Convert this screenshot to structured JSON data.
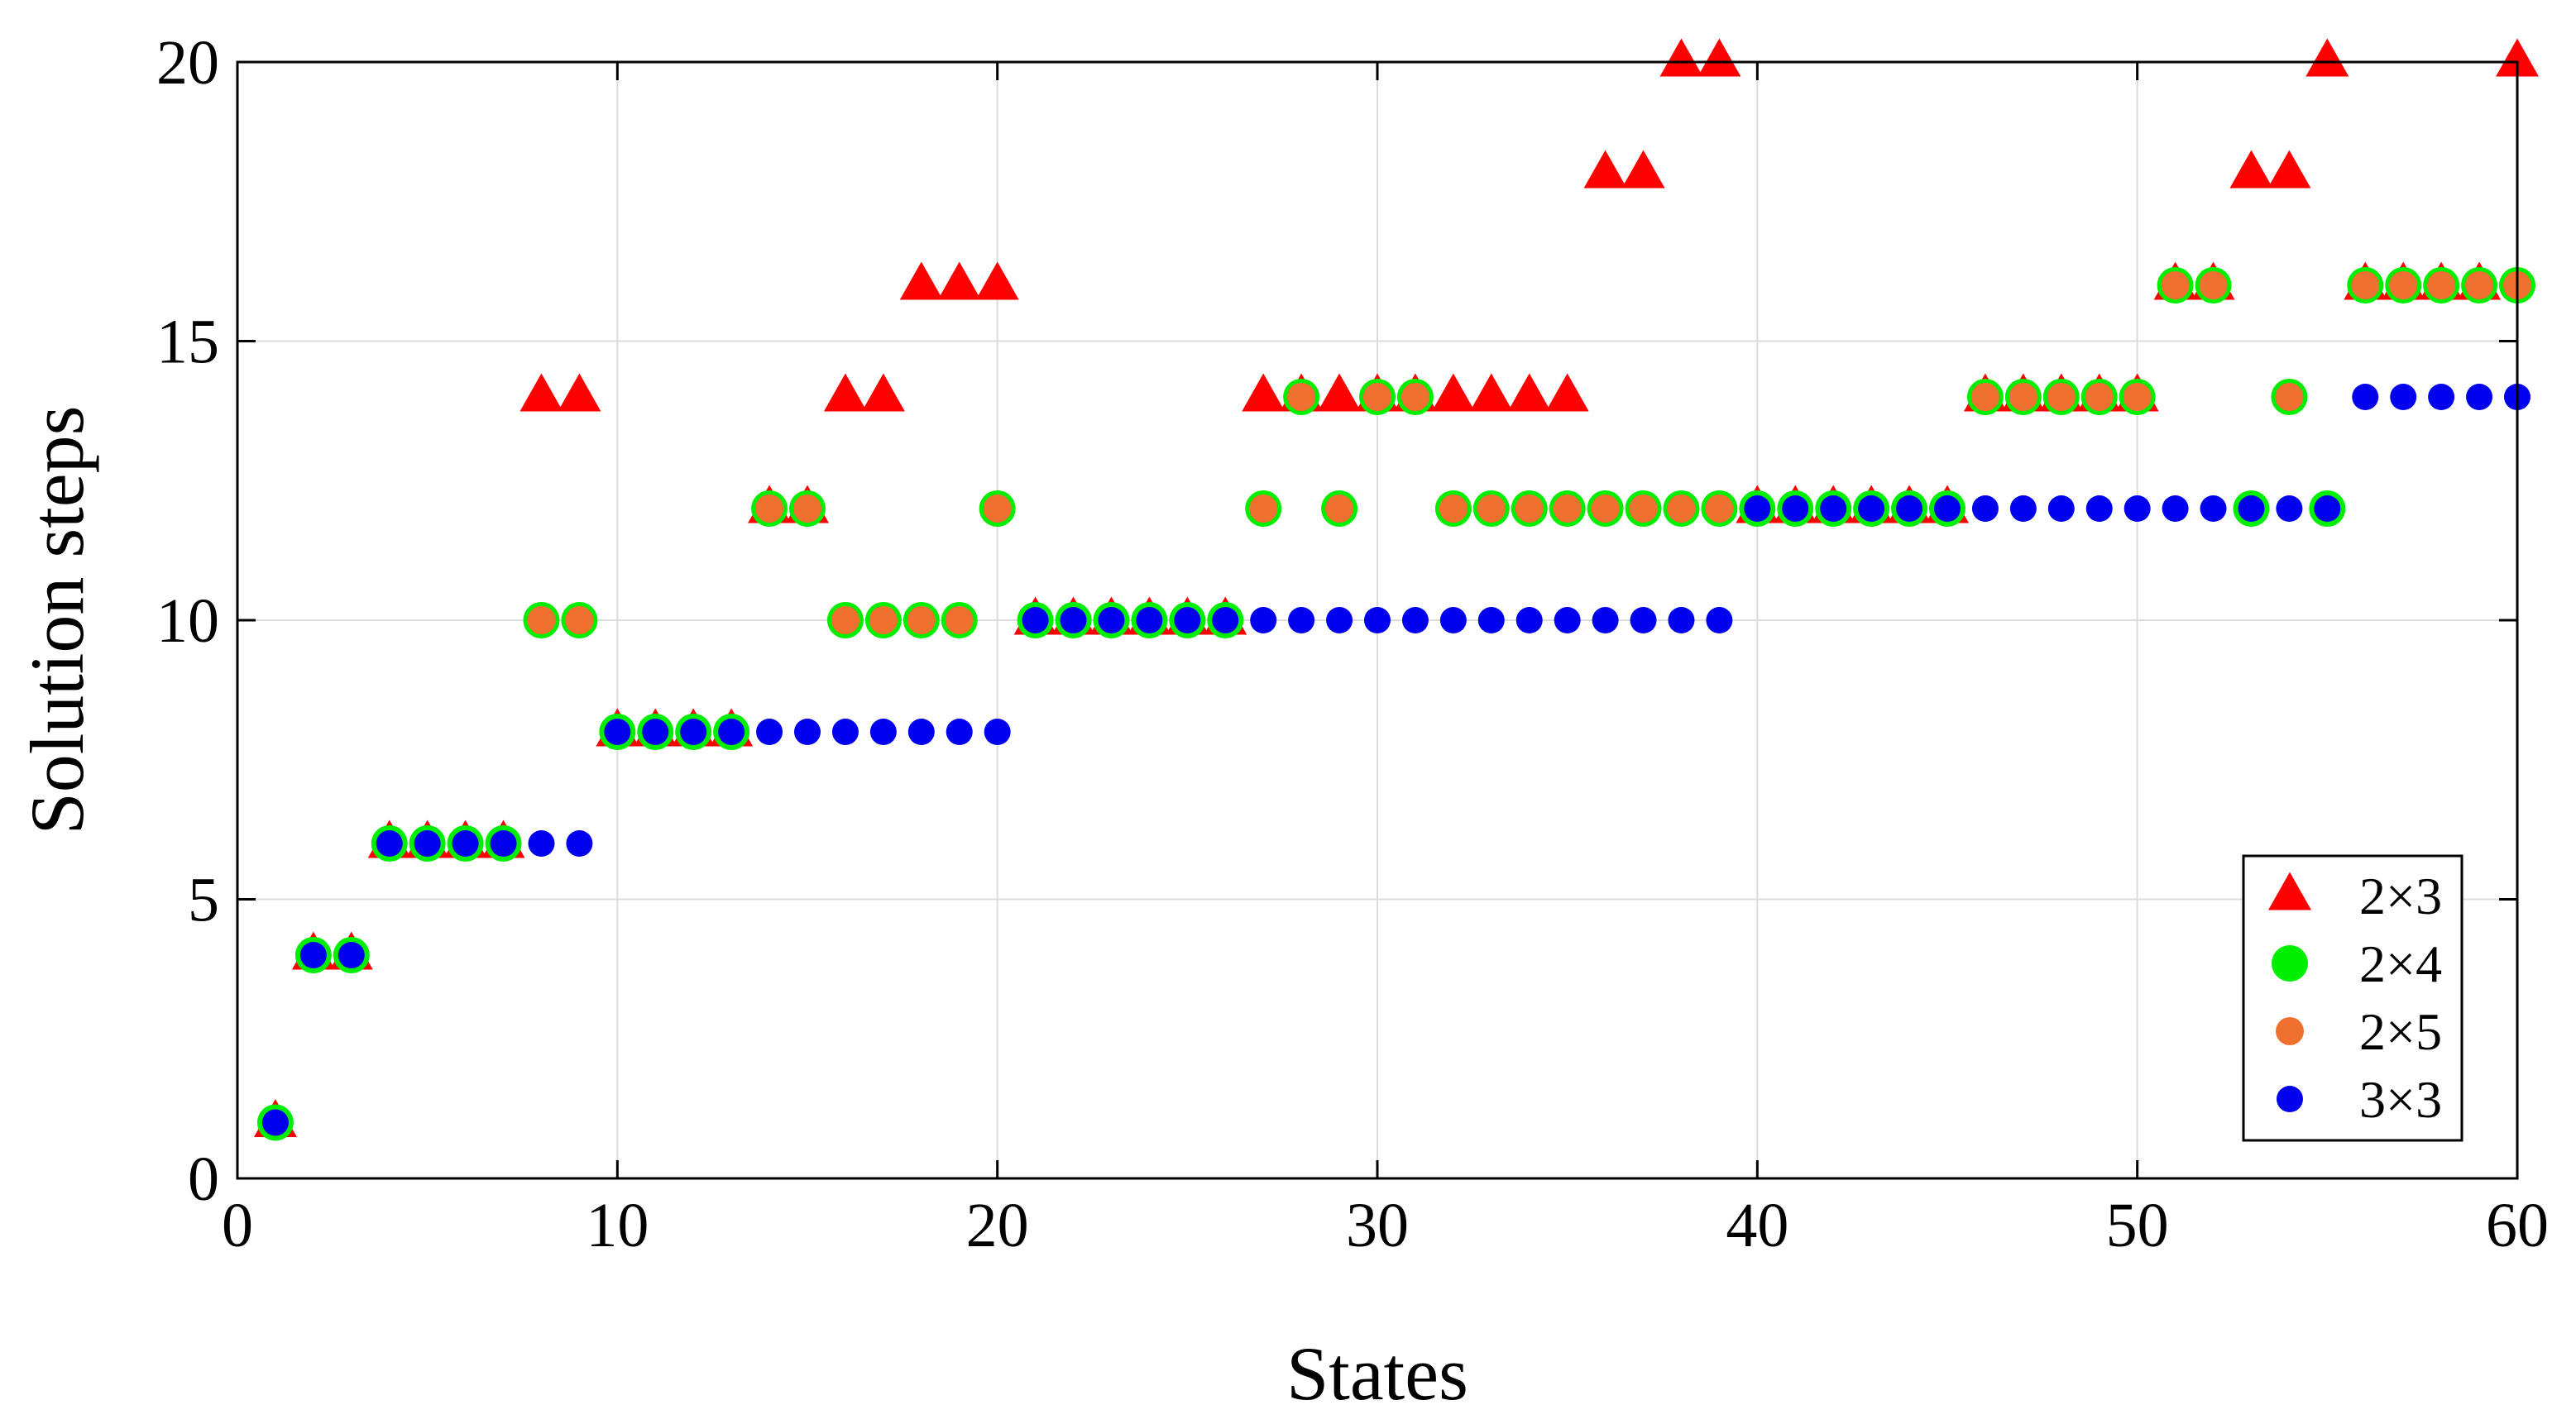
{
  "chart_data": {
    "type": "scatter",
    "title": "",
    "xlabel": "States",
    "ylabel": "Solution steps",
    "xlim": [
      0,
      60
    ],
    "ylim": [
      0,
      20
    ],
    "xticks": [
      0,
      10,
      20,
      30,
      40,
      50,
      60
    ],
    "yticks": [
      0,
      5,
      10,
      15,
      20
    ],
    "grid": true,
    "legend_position": "bottom-right",
    "series": [
      {
        "name": "2×3",
        "marker": "triangle",
        "color": "#ff0000",
        "x": [
          1,
          2,
          3,
          4,
          5,
          6,
          7,
          8,
          9,
          10,
          11,
          12,
          13,
          14,
          15,
          16,
          17,
          18,
          19,
          20,
          21,
          22,
          23,
          24,
          25,
          26,
          27,
          28,
          29,
          30,
          31,
          32,
          33,
          34,
          35,
          36,
          37,
          38,
          39,
          40,
          41,
          42,
          43,
          44,
          45,
          46,
          47,
          48,
          49,
          50,
          51,
          52,
          53,
          54,
          55,
          56,
          57,
          58,
          59,
          60
        ],
        "y": [
          1,
          4,
          4,
          6,
          6,
          6,
          6,
          14,
          14,
          8,
          8,
          8,
          8,
          12,
          12,
          14,
          14,
          16,
          16,
          16,
          10,
          10,
          10,
          10,
          10,
          10,
          14,
          14,
          14,
          14,
          14,
          14,
          14,
          14,
          14,
          18,
          18,
          20,
          20,
          12,
          12,
          12,
          12,
          12,
          12,
          14,
          14,
          14,
          14,
          14,
          16,
          16,
          18,
          18,
          20,
          16,
          16,
          16,
          16,
          20
        ]
      },
      {
        "name": "2×4",
        "marker": "circle",
        "color": "#00ee00",
        "x": [
          1,
          2,
          3,
          4,
          5,
          6,
          7,
          8,
          9,
          10,
          11,
          12,
          13,
          14,
          15,
          16,
          17,
          18,
          19,
          20,
          21,
          22,
          23,
          24,
          25,
          26,
          27,
          28,
          29,
          30,
          31,
          32,
          33,
          34,
          35,
          36,
          37,
          38,
          39,
          40,
          41,
          42,
          43,
          44,
          45,
          46,
          47,
          48,
          49,
          50,
          51,
          52,
          53,
          54,
          55,
          56,
          57,
          58,
          59,
          60
        ],
        "y": [
          1,
          4,
          4,
          6,
          6,
          6,
          6,
          10,
          10,
          8,
          8,
          8,
          8,
          12,
          12,
          10,
          10,
          10,
          10,
          12,
          10,
          10,
          10,
          10,
          10,
          10,
          12,
          14,
          12,
          14,
          14,
          12,
          12,
          12,
          12,
          12,
          12,
          12,
          12,
          12,
          12,
          12,
          12,
          12,
          12,
          14,
          14,
          14,
          14,
          14,
          16,
          16,
          12,
          14,
          12,
          16,
          16,
          16,
          16,
          16
        ]
      },
      {
        "name": "2×5",
        "marker": "circle",
        "color": "#f07030",
        "x": [
          8,
          9,
          14,
          15,
          16,
          17,
          18,
          19,
          20,
          27,
          28,
          29,
          30,
          31,
          32,
          33,
          34,
          35,
          36,
          37,
          38,
          39,
          46,
          47,
          48,
          49,
          50,
          51,
          52,
          54,
          56,
          57,
          58,
          59,
          60
        ],
        "y": [
          10,
          10,
          12,
          12,
          10,
          10,
          10,
          10,
          12,
          12,
          14,
          12,
          14,
          14,
          12,
          12,
          12,
          12,
          12,
          12,
          12,
          12,
          14,
          14,
          14,
          14,
          14,
          16,
          16,
          14,
          16,
          16,
          16,
          16,
          16
        ]
      },
      {
        "name": "3×3",
        "marker": "circle",
        "color": "#0000ee",
        "x": [
          1,
          2,
          3,
          4,
          5,
          6,
          7,
          8,
          9,
          10,
          11,
          12,
          13,
          14,
          15,
          16,
          17,
          18,
          19,
          20,
          21,
          22,
          23,
          24,
          25,
          26,
          27,
          28,
          29,
          30,
          31,
          32,
          33,
          34,
          35,
          36,
          37,
          38,
          39,
          40,
          41,
          42,
          43,
          44,
          45,
          46,
          47,
          48,
          49,
          50,
          51,
          52,
          53,
          54,
          55,
          56,
          57,
          58,
          59,
          60
        ],
        "y": [
          1,
          4,
          4,
          6,
          6,
          6,
          6,
          6,
          6,
          8,
          8,
          8,
          8,
          8,
          8,
          8,
          8,
          8,
          8,
          8,
          10,
          10,
          10,
          10,
          10,
          10,
          10,
          10,
          10,
          10,
          10,
          10,
          10,
          10,
          10,
          10,
          10,
          10,
          10,
          12,
          12,
          12,
          12,
          12,
          12,
          12,
          12,
          12,
          12,
          12,
          12,
          12,
          12,
          12,
          12,
          14,
          14,
          14,
          14,
          14
        ]
      }
    ]
  }
}
